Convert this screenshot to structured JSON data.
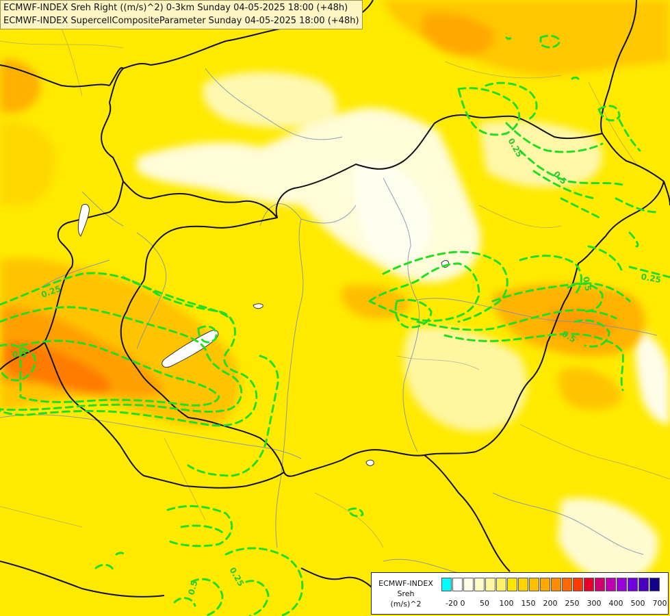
{
  "header": {
    "line1": "ECMWF-INDEX Sreh Right ((m/s)^2) 0-3km Sunday 04-05-2025 18:00 (+48h)",
    "line2": "ECMWF-INDEX SupercellCompositeParameter Sunday 04-05-2025 18:00 (+48h)"
  },
  "legend": {
    "title": [
      "ECMWF-INDEX",
      "Sreh",
      "(m/s)^2"
    ],
    "colors": [
      "#00ffff",
      "#ffffff",
      "#fffde8",
      "#fffbc8",
      "#fff6a0",
      "#fff06a",
      "#ffe600",
      "#ffd400",
      "#ffc000",
      "#ffa800",
      "#ff8c00",
      "#ff6a00",
      "#ff3a00",
      "#e8002a",
      "#d0006e",
      "#c000b0",
      "#9a00d8",
      "#7000e0",
      "#4a00c0",
      "#10008a"
    ],
    "ticks": [
      "-20",
      "0",
      "50",
      "100",
      "150",
      "200",
      "250",
      "300",
      "400",
      "500",
      "700"
    ]
  },
  "contour_labels": [
    {
      "text": "0.25"
    },
    {
      "text": "0.5"
    },
    {
      "text": "0.25"
    },
    {
      "text": "0.5"
    },
    {
      "text": "0.5"
    },
    {
      "text": "0.25"
    },
    {
      "text": "0.25"
    },
    {
      "text": "0.5"
    },
    {
      "text": "0.5"
    }
  ]
}
